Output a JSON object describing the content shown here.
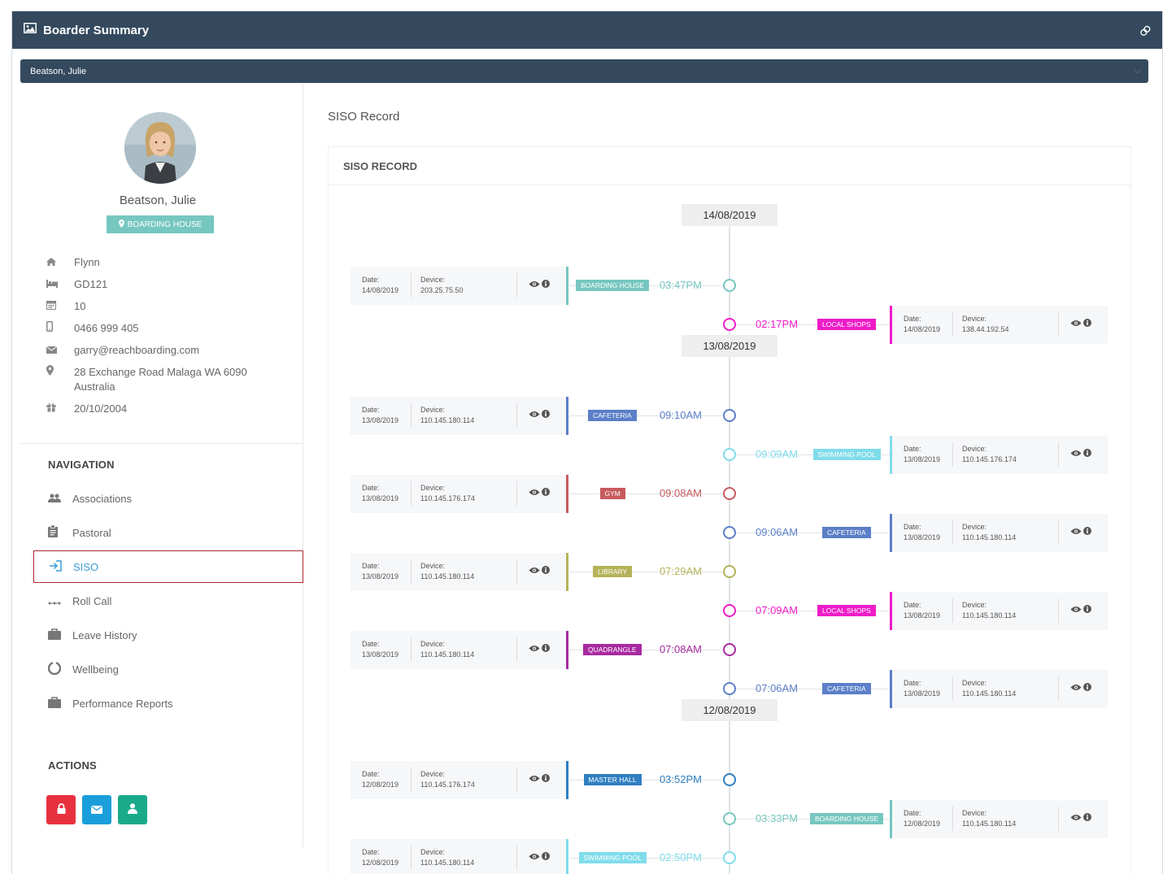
{
  "header": {
    "title": "Boarder Summary"
  },
  "selector": {
    "value": "Beatson, Julie"
  },
  "profile": {
    "name": "Beatson, Julie",
    "location": "BOARDING HOUSE",
    "info": [
      {
        "icon": "house-icon",
        "text": "Flynn"
      },
      {
        "icon": "bed-icon",
        "text": "GD121"
      },
      {
        "icon": "calendar-icon",
        "text": "10"
      },
      {
        "icon": "mobile-phone-icon",
        "text": "0466 999 405"
      },
      {
        "icon": "envelope-icon",
        "text": "garry@reachboarding.com"
      },
      {
        "icon": "map-marker-icon",
        "text": "28 Exchange Road Malaga WA 6090 Australia"
      },
      {
        "icon": "gift-icon",
        "text": "20/10/2004"
      }
    ]
  },
  "navigation": {
    "title": "NAVIGATION",
    "items": [
      {
        "label": "Associations",
        "icon": "users-icon"
      },
      {
        "label": "Pastoral",
        "icon": "clipboard-icon"
      },
      {
        "label": "SISO",
        "icon": "sign-in-icon",
        "active": true
      },
      {
        "label": "Roll Call",
        "icon": "ellipsis-icon"
      },
      {
        "label": "Leave History",
        "icon": "briefcase-icon"
      },
      {
        "label": "Wellbeing",
        "icon": "circle-notch-icon"
      },
      {
        "label": "Performance Reports",
        "icon": "briefcase-icon"
      }
    ]
  },
  "actions": {
    "title": "ACTIONS",
    "buttons": [
      {
        "name": "lock-button",
        "icon": "lock-icon",
        "color": "#e8313f"
      },
      {
        "name": "email-button",
        "icon": "envelope-icon",
        "color": "#1a9fdb"
      },
      {
        "name": "user-button",
        "icon": "user-icon",
        "color": "#1aaa8a"
      }
    ]
  },
  "main": {
    "title": "SISO Record",
    "card_title": "SISO RECORD"
  },
  "labels": {
    "date": "Date:",
    "device": "Device:"
  },
  "timeline": {
    "dates": [
      "14/08/2019",
      "13/08/2019",
      "12/08/2019"
    ],
    "events": [
      {
        "side": "left",
        "date": "14/08/2019",
        "device": "203.25.75.50",
        "location": "BOARDING HOUSE",
        "time": "03:47PM",
        "color": "#76c7c0"
      },
      {
        "side": "right",
        "date": "14/08/2019",
        "device": "138.44.192.54",
        "location": "LOCAL SHOPS",
        "time": "02:17PM",
        "color": "#ee1cc8"
      },
      {
        "side": "left",
        "date": "13/08/2019",
        "device": "110.145.180.114",
        "location": "CAFETERIA",
        "time": "09:10AM",
        "color": "#5b7fc8"
      },
      {
        "side": "right",
        "date": "13/08/2019",
        "device": "110.145.176.174",
        "location": "SWIMMING POOL",
        "time": "09:09AM",
        "color": "#80dcea"
      },
      {
        "side": "left",
        "date": "13/08/2019",
        "device": "110.145.176.174",
        "location": "GYM",
        "time": "09:08AM",
        "color": "#c75a5e"
      },
      {
        "side": "right",
        "date": "13/08/2019",
        "device": "110.145.180.114",
        "location": "CAFETERIA",
        "time": "09:06AM",
        "color": "#5b7fc8"
      },
      {
        "side": "left",
        "date": "13/08/2019",
        "device": "110.145.180.114",
        "location": "LIBRARY",
        "time": "07:29AM",
        "color": "#b5b35a"
      },
      {
        "side": "right",
        "date": "13/08/2019",
        "device": "110.145.180.114",
        "location": "LOCAL SHOPS",
        "time": "07:09AM",
        "color": "#ee1cc8"
      },
      {
        "side": "left",
        "date": "13/08/2019",
        "device": "110.145.180.114",
        "location": "QUADRANGLE",
        "time": "07:08AM",
        "color": "#a82aa0"
      },
      {
        "side": "right",
        "date": "13/08/2019",
        "device": "110.145.180.114",
        "location": "CAFETERIA",
        "time": "07:06AM",
        "color": "#5b7fc8"
      },
      {
        "side": "left",
        "date": "12/08/2019",
        "device": "110.145.176.174",
        "location": "MASTER HALL",
        "time": "03:52PM",
        "color": "#2f7fc1"
      },
      {
        "side": "right",
        "date": "12/08/2019",
        "device": "110.145.180.114",
        "location": "BOARDING HOUSE",
        "time": "03:33PM",
        "color": "#76c7c0"
      },
      {
        "side": "left",
        "date": "12/08/2019",
        "device": "110.145.180.114",
        "location": "SWIMMING POOL",
        "time": "02:50PM",
        "color": "#80dcea"
      },
      {
        "side": "right",
        "date": "",
        "device": "",
        "location": "",
        "time": "",
        "color": "#ee1cc8"
      }
    ]
  }
}
